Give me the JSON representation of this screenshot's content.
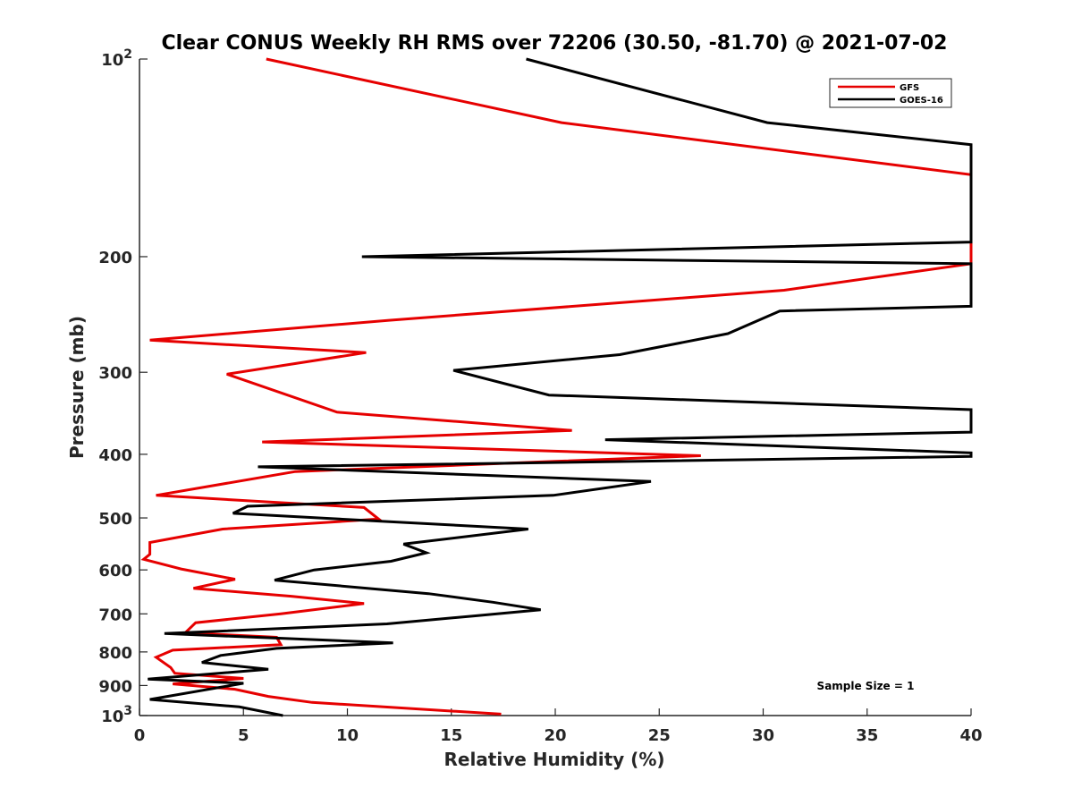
{
  "chart_data": {
    "type": "line",
    "title": "Clear CONUS Weekly RH RMS over 72206 (30.50, -81.70) @ 2021-07-02",
    "xlabel": "Relative Humidity (%)",
    "ylabel": "Pressure (mb)",
    "xlim": [
      0,
      40
    ],
    "ylim": [
      100,
      1000
    ],
    "y_scale": "log",
    "y_reversed": true,
    "x_ticks": [
      0,
      5,
      10,
      15,
      20,
      25,
      30,
      35,
      40
    ],
    "x_tick_labels": [
      "0",
      "5",
      "10",
      "15",
      "20",
      "25",
      "30",
      "35",
      "40"
    ],
    "y_ticks": [
      100,
      200,
      300,
      400,
      500,
      600,
      700,
      800,
      900,
      1000
    ],
    "y_tick_labels": [
      "10²",
      "200",
      "300",
      "400",
      "500",
      "600",
      "700",
      "800",
      "900",
      "10³"
    ],
    "grid": false,
    "legend_position": "top-right",
    "annotation": "Sample Size = 1",
    "series": [
      {
        "name": "GFS",
        "color": "#e60000",
        "points": [
          [
            6.1,
            100
          ],
          [
            20.3,
            125
          ],
          [
            40,
            150
          ],
          [
            40,
            205
          ],
          [
            31,
            225
          ],
          [
            12,
            250
          ],
          [
            0.5,
            268
          ],
          [
            10.9,
            280
          ],
          [
            4.2,
            302
          ],
          [
            9.5,
            345
          ],
          [
            20.8,
            368
          ],
          [
            5.9,
            383
          ],
          [
            27,
            402
          ],
          [
            20,
            410
          ],
          [
            7.5,
            425
          ],
          [
            0.8,
            462
          ],
          [
            10.8,
            482
          ],
          [
            11.5,
            502
          ],
          [
            4,
            520
          ],
          [
            0.5,
            545
          ],
          [
            0.5,
            568
          ],
          [
            0.2,
            578
          ],
          [
            2,
            598
          ],
          [
            4.6,
            620
          ],
          [
            2.6,
            640
          ],
          [
            7.3,
            658
          ],
          [
            10.8,
            675
          ],
          [
            6.8,
            700
          ],
          [
            2.7,
            722
          ],
          [
            2.2,
            748
          ],
          [
            6.6,
            760
          ],
          [
            6.8,
            780
          ],
          [
            1.6,
            795
          ],
          [
            0.8,
            815
          ],
          [
            1.5,
            845
          ],
          [
            1.7,
            862
          ],
          [
            5,
            878
          ],
          [
            1.6,
            895
          ],
          [
            4.6,
            912
          ],
          [
            6.2,
            935
          ],
          [
            8.3,
            955
          ],
          [
            17.4,
            995
          ]
        ]
      },
      {
        "name": "GOES-16",
        "color": "#000000",
        "points": [
          [
            18.6,
            100
          ],
          [
            30.2,
            125
          ],
          [
            40,
            135
          ],
          [
            40,
            190
          ],
          [
            10.7,
            200
          ],
          [
            40,
            205
          ],
          [
            40,
            238
          ],
          [
            30.8,
            242
          ],
          [
            28.3,
            262
          ],
          [
            23.1,
            282
          ],
          [
            15.1,
            298
          ],
          [
            19.7,
            325
          ],
          [
            40,
            342
          ],
          [
            40,
            370
          ],
          [
            22.4,
            380
          ],
          [
            40,
            398
          ],
          [
            40,
            403
          ],
          [
            5.7,
            418
          ],
          [
            24.6,
            440
          ],
          [
            19.9,
            462
          ],
          [
            5.2,
            480
          ],
          [
            4.5,
            492
          ],
          [
            18.7,
            520
          ],
          [
            12.7,
            548
          ],
          [
            13.8,
            565
          ],
          [
            12.1,
            582
          ],
          [
            8.4,
            600
          ],
          [
            6.5,
            622
          ],
          [
            13.9,
            652
          ],
          [
            17,
            672
          ],
          [
            19.3,
            690
          ],
          [
            16.1,
            705
          ],
          [
            11.9,
            725
          ],
          [
            1.2,
            750
          ],
          [
            12.2,
            775
          ],
          [
            6.6,
            790
          ],
          [
            3.9,
            810
          ],
          [
            3,
            830
          ],
          [
            6.2,
            850
          ],
          [
            0.4,
            880
          ],
          [
            5,
            893
          ],
          [
            0.5,
            945
          ],
          [
            4.8,
            970
          ],
          [
            6.9,
            1000
          ]
        ]
      }
    ]
  }
}
